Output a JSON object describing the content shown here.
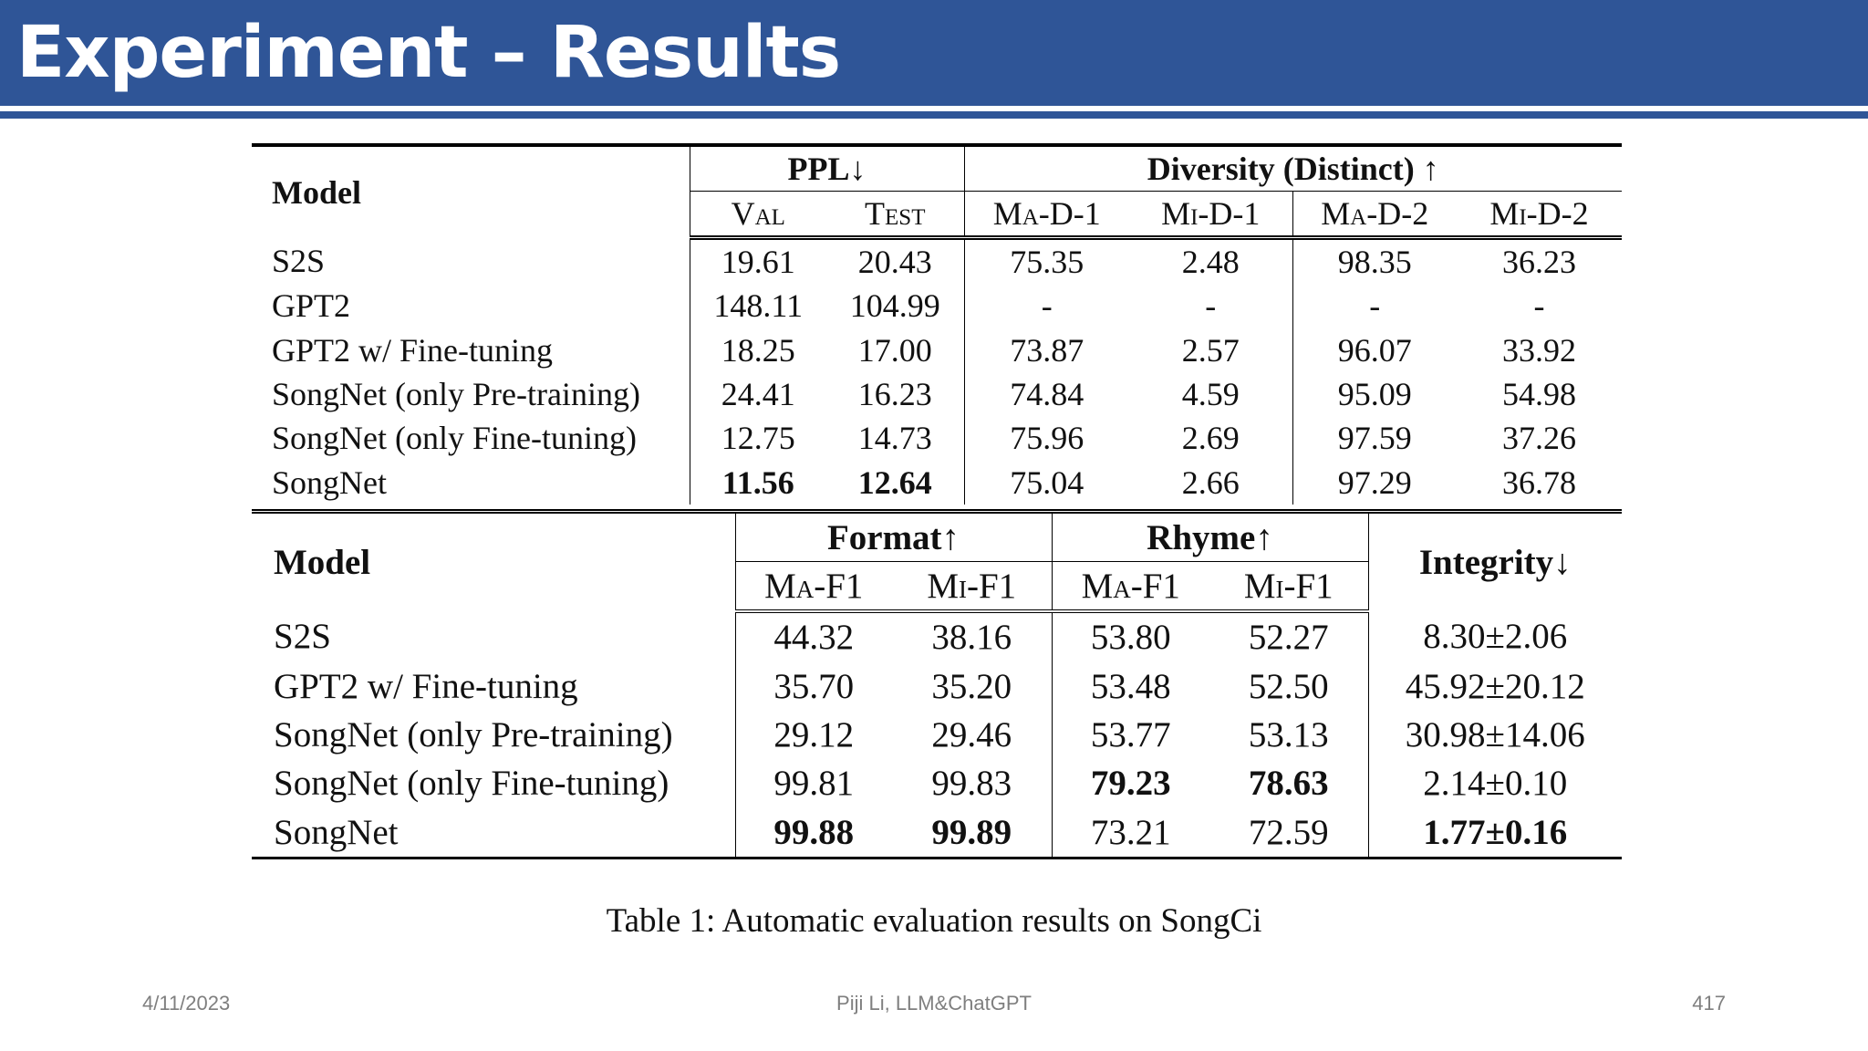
{
  "slide": {
    "title": "Experiment – Results",
    "footer": {
      "date": "4/11/2023",
      "center": "Piji Li, LLM&ChatGPT",
      "page": "417"
    },
    "caption": "Table 1:  Automatic evaluation results on SongCi"
  },
  "table1": {
    "model_header": "Model",
    "ppl_header": "PPL↓",
    "diversity_header": "Diversity (Distinct) ↑",
    "sub_headers": [
      "Val",
      "Test",
      "Ma-D-1",
      "Mi-D-1",
      "Ma-D-2",
      "Mi-D-2"
    ],
    "rows": [
      {
        "model": "S2S",
        "cells": [
          "19.61",
          "20.43",
          "75.35",
          "2.48",
          "98.35",
          "36.23"
        ]
      },
      {
        "model": "GPT2",
        "cells": [
          "148.11",
          "104.99",
          "-",
          "-",
          "-",
          "-"
        ]
      },
      {
        "model": "GPT2 w/ Fine-tuning",
        "cells": [
          "18.25",
          "17.00",
          "73.87",
          "2.57",
          "96.07",
          "33.92"
        ]
      },
      {
        "model": "SongNet (only Pre-training)",
        "cells": [
          "24.41",
          "16.23",
          "74.84",
          "4.59",
          "95.09",
          "54.98"
        ]
      },
      {
        "model": "SongNet (only Fine-tuning)",
        "cells": [
          "12.75",
          "14.73",
          "75.96",
          "2.69",
          "97.59",
          "37.26"
        ]
      },
      {
        "model": "SongNet",
        "cells": [
          "11.56",
          "12.64",
          "75.04",
          "2.66",
          "97.29",
          "36.78"
        ]
      }
    ]
  },
  "table2": {
    "model_header": "Model",
    "format_header": "Format↑",
    "rhyme_header": "Rhyme↑",
    "integrity_header": "Integrity↓",
    "sub_headers": [
      "Ma-F1",
      "Mi-F1",
      "Ma-F1",
      "Mi-F1"
    ],
    "rows": [
      {
        "model": "S2S",
        "cells": [
          "44.32",
          "38.16",
          "53.80",
          "52.27",
          "8.30±2.06"
        ]
      },
      {
        "model": "GPT2 w/ Fine-tuning",
        "cells": [
          "35.70",
          "35.20",
          "53.48",
          "52.50",
          "45.92±20.12"
        ]
      },
      {
        "model": "SongNet (only Pre-training)",
        "cells": [
          "29.12",
          "29.46",
          "53.77",
          "53.13",
          "30.98±14.06"
        ]
      },
      {
        "model": "SongNet (only Fine-tuning)",
        "cells": [
          "99.81",
          "99.83",
          "79.23",
          "78.63",
          "2.14±0.10"
        ]
      },
      {
        "model": "SongNet",
        "cells": [
          "99.88",
          "99.89",
          "73.21",
          "72.59",
          "1.77±0.16"
        ]
      }
    ]
  }
}
